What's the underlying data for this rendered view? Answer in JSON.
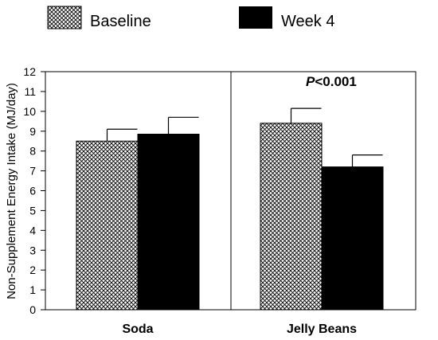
{
  "chart_data": {
    "type": "bar",
    "ylabel": "Non-Supplement Energy Intake (MJ/day)",
    "ylim": [
      0,
      12
    ],
    "yticks": [
      0,
      1,
      2,
      3,
      4,
      5,
      6,
      7,
      8,
      9,
      10,
      11,
      12
    ],
    "categories": [
      "Soda",
      "Jelly Beans"
    ],
    "series": [
      {
        "name": "Baseline",
        "values": [
          8.5,
          9.4
        ],
        "errors": [
          0.6,
          0.75
        ],
        "color": "#ffffff",
        "pattern": "crosshatch"
      },
      {
        "name": "Week 4",
        "values": [
          8.85,
          7.2
        ],
        "errors": [
          0.85,
          0.6
        ],
        "color": "#000000",
        "pattern": "solid"
      }
    ],
    "annotations": [
      {
        "panel": "Jelly Beans",
        "p_symbol": "P",
        "text": "<0.001"
      }
    ],
    "legend": {
      "position": "top"
    },
    "grid": false
  }
}
